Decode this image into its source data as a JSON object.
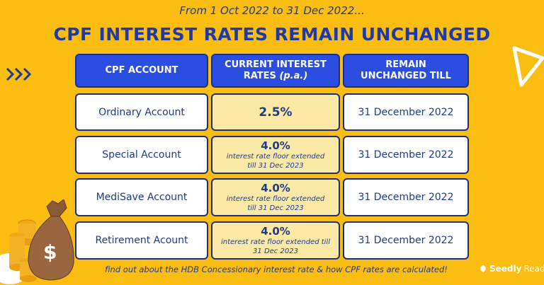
{
  "subtitle": "From 1 Oct 2022 to 31 Dec 2022...",
  "title": "CPF INTEREST RATES REMAIN UNCHANGED",
  "headers": {
    "account": "CPF ACCOUNT",
    "rate_line1": "CURRENT INTEREST",
    "rate_line2": "RATES",
    "rate_pa": "(p.a.)",
    "till_line1": "REMAIN",
    "till_line2": "UNCHANGED TILL"
  },
  "rows": [
    {
      "account": "Ordinary Account",
      "rate": "2.5%",
      "note1": "",
      "note2": "",
      "till": "31 December 2022"
    },
    {
      "account": "Special Account",
      "rate": "4.0%",
      "note1": "interest rate floor extended",
      "note2": "till 31 Dec 2023",
      "till": "31 December 2022"
    },
    {
      "account": "MediSave Account",
      "rate": "4.0%",
      "note1": "interest rate floor extended",
      "note2": "till 31 Dec 2023",
      "till": "31 December 2022"
    },
    {
      "account": "Retirement Acount",
      "rate": "4.0%",
      "note1": "interest rate floor extended till",
      "note2": "31 Dec 2023",
      "till": "31 December 2022"
    }
  ],
  "footer": "find out about the HDB Concessionary interest rate & how CPF rates are calculated!",
  "brand": {
    "name1": "Seedly",
    "name2": "Reads"
  },
  "colors": {
    "background": "#fbbd12",
    "header_blue": "#2b4ee0",
    "rate_cell": "#fde9a6",
    "text_navy": "#1e3a8a"
  },
  "icons": [
    "chevrons-right-icon",
    "triangle-outline-icon",
    "money-bag-icon",
    "coin-stack-icon",
    "seedly-logo-icon"
  ]
}
